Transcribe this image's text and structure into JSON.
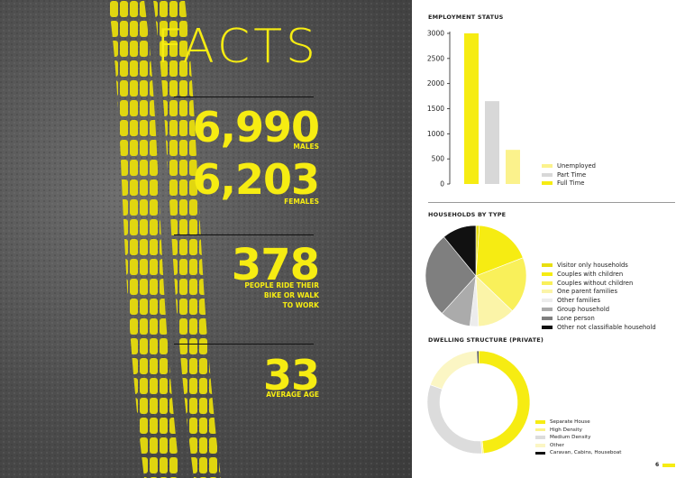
{
  "left": {
    "title": "FACTS",
    "stats": [
      {
        "value": "6,990",
        "label": "MALES"
      },
      {
        "value": "6,203",
        "label": "FEMALES"
      },
      {
        "value": "378",
        "label_lines": [
          "PEOPLE RIDE THEIR",
          "BIKE OR WALK",
          "TO WORK"
        ]
      },
      {
        "value": "33",
        "label": "AVERAGE AGE"
      }
    ]
  },
  "colors": {
    "accent": "#f6ec12",
    "yellow_pale": "#fbf28c",
    "grey_light": "#d8d8d8",
    "grey_mid": "#ababab",
    "grey_dark": "#7f7f7f",
    "black": "#111111",
    "road": "#4d4d4d"
  },
  "right": {
    "employment_title": "EMPLOYMENT STATUS",
    "households_title": "HOUSEHOLDS BY TYPE",
    "dwelling_title": "DWELLING STRUCTURE (PRIVATE)",
    "page_number": "6"
  },
  "chart_data": [
    {
      "type": "bar",
      "title": "EMPLOYMENT STATUS",
      "categories": [
        "Full Time",
        "Part Time",
        "Unemployed"
      ],
      "values": [
        3000,
        1650,
        680
      ],
      "colors": [
        "#f6ec12",
        "#d8d8d8",
        "#fbf28c"
      ],
      "legend": [
        "Unemployed",
        "Part Time",
        "Full Time"
      ],
      "legend_colors": [
        "#fbf28c",
        "#d8d8d8",
        "#f6ec12"
      ],
      "yticks": [
        0,
        500,
        1000,
        1500,
        2000,
        2500,
        3000
      ],
      "ylim": [
        0,
        3000
      ],
      "legend_position": "right"
    },
    {
      "type": "pie",
      "title": "HOUSEHOLDS BY TYPE",
      "labels": [
        "Visitor only households",
        "Couples with children",
        "Couples without children",
        "One parent families",
        "Other families",
        "Group household",
        "Lone person",
        "Other not classifiable household"
      ],
      "values": [
        1.0,
        16.5,
        16.5,
        11.0,
        2.5,
        9.0,
        25.0,
        10.0
      ],
      "colors": [
        "#e8df10",
        "#f6ec12",
        "#f9f05a",
        "#fbf4a8",
        "#ececec",
        "#ababab",
        "#7f7f7f",
        "#111111"
      ],
      "legend_position": "right"
    },
    {
      "type": "pie",
      "title": "DWELLING STRUCTURE (PRIVATE)",
      "labels": [
        "Separate House",
        "High Density",
        "Medium Density",
        "Other",
        "Caravan, Cabins, Houseboat"
      ],
      "values": [
        48.5,
        0.5,
        31.5,
        19.0,
        0.5
      ],
      "colors": [
        "#f6ec12",
        "#fbf28c",
        "#dcdcdc",
        "#fbf6c4",
        "#111111"
      ],
      "legend_position": "right"
    }
  ]
}
